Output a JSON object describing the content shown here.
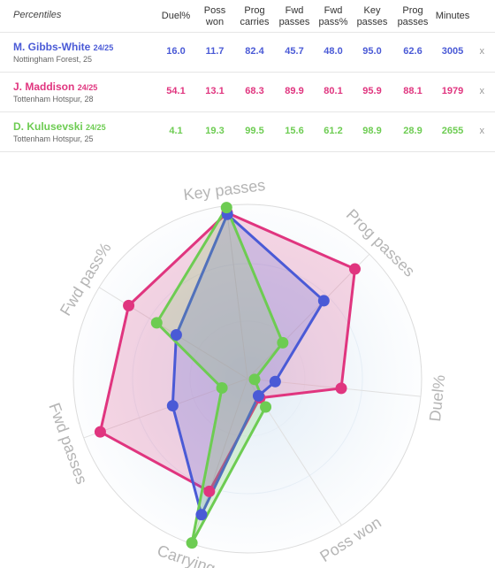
{
  "table": {
    "title": "Percentiles",
    "columns": [
      "Duel%",
      "Poss won",
      "Prog carries",
      "Fwd passes",
      "Fwd pass%",
      "Key passes",
      "Prog passes",
      "Minutes"
    ],
    "remove_label": "x",
    "players": [
      {
        "name": "M. Gibbs-White",
        "season": "24/25",
        "team": "Nottingham Forest, 25",
        "values": [
          "16.0",
          "11.7",
          "82.4",
          "45.7",
          "48.0",
          "95.0",
          "62.6",
          "3005"
        ]
      },
      {
        "name": "J. Maddison",
        "season": "24/25",
        "team": "Tottenham Hotspur, 28",
        "values": [
          "54.1",
          "13.1",
          "68.3",
          "89.9",
          "80.1",
          "95.9",
          "88.1",
          "1979"
        ]
      },
      {
        "name": "D. Kulusevski",
        "season": "24/25",
        "team": "Tottenham Hotspur, 25",
        "values": [
          "4.1",
          "19.3",
          "99.5",
          "15.6",
          "61.2",
          "98.9",
          "28.9",
          "2655"
        ]
      }
    ]
  },
  "colors": {
    "gibbs_white": "#4a5ad6",
    "maddison": "#e0357f",
    "kulusevski": "#6dcc52"
  },
  "chart_data": {
    "type": "radar",
    "axes": [
      "Key passes",
      "Prog passes",
      "Duel%",
      "Poss won",
      "Carrying",
      "Fwd passes",
      "Fwd pass%"
    ],
    "range": [
      0,
      100
    ],
    "series": [
      {
        "name": "M. Gibbs-White",
        "values": [
          95.0,
          62.6,
          16.0,
          11.7,
          82.4,
          45.7,
          48.0
        ]
      },
      {
        "name": "J. Maddison",
        "values": [
          95.9,
          88.1,
          54.1,
          13.1,
          68.3,
          89.9,
          80.1
        ]
      },
      {
        "name": "D. Kulusevski",
        "values": [
          98.9,
          28.9,
          4.1,
          19.3,
          99.5,
          15.6,
          61.2
        ]
      }
    ]
  }
}
